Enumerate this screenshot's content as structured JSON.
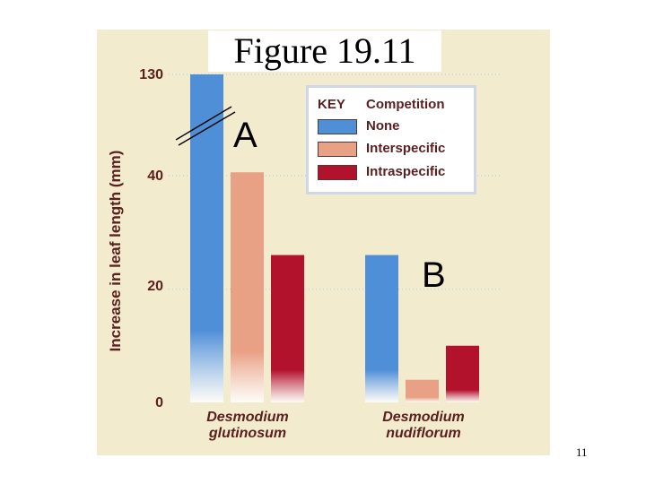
{
  "figure_title": "Figure 19.11",
  "page_number": "11",
  "markers": {
    "a": "A",
    "b": "B"
  },
  "colors": {
    "panel": "#f3ebcd",
    "none": "#4f8fd8",
    "interspecific": "#e9a186",
    "intraspecific": "#b3122d",
    "grid": "#bdd3e6",
    "text": "#5a1f1f"
  },
  "chart_data": {
    "type": "bar",
    "title": "",
    "ylabel": "Increase in leaf length (mm)",
    "xlabel": "",
    "y_axis_broken": true,
    "y_ticks": [
      "0",
      "20",
      "40",
      "130"
    ],
    "categories": [
      "Desmodium glutinosum",
      "Desmodium nudiflorum"
    ],
    "legend": {
      "title_key": "KEY",
      "title": "Competition",
      "placement": "top-right"
    },
    "series": [
      {
        "name": "None",
        "values": [
          130,
          26
        ]
      },
      {
        "name": "Interspecific",
        "values": [
          43,
          4
        ]
      },
      {
        "name": "Intraspecific",
        "values": [
          26,
          10
        ]
      }
    ]
  }
}
